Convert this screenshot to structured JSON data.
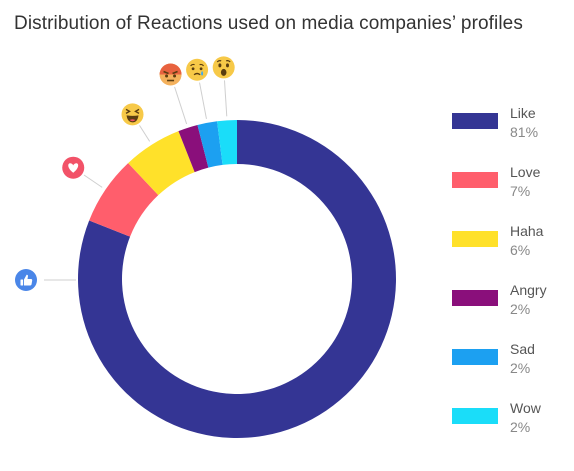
{
  "title": "Distribution of Reactions used on media companies’ profiles",
  "chart_data": {
    "type": "pie",
    "variant": "donut",
    "title": "Distribution of Reactions used on media companies’ profiles",
    "categories": [
      "Like",
      "Love",
      "Haha",
      "Angry",
      "Sad",
      "Wow"
    ],
    "values": [
      81,
      7,
      6,
      2,
      2,
      2
    ],
    "value_labels": [
      "81%",
      "7%",
      "6%",
      "2%",
      "2%",
      "2%"
    ],
    "unit": "%",
    "colors": [
      "#343594",
      "#FF5E6C",
      "#FFE12A",
      "#8A0F7B",
      "#1CA0F1",
      "#1ADDF9"
    ],
    "icons": [
      "like-icon",
      "love-icon",
      "haha-icon",
      "angry-icon",
      "sad-icon",
      "wow-icon"
    ],
    "legend_position": "right"
  }
}
